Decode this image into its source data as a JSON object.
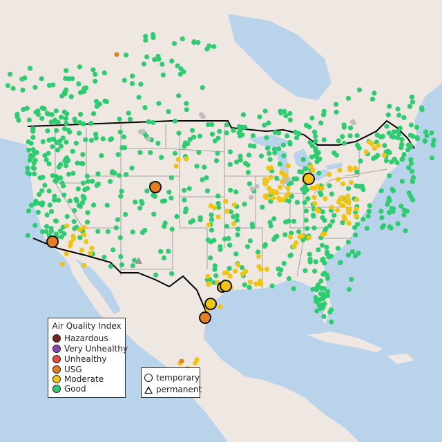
{
  "colors": {
    "water": "#b9d3ea",
    "land": "#eee7e2",
    "land_shade": "#d6cfc9",
    "state_lines": "#8f8f8f",
    "border": "#000000",
    "good": "#2ecc71",
    "moderate": "#f1c40f",
    "usg": "#e67e22",
    "unhealthy": "#e74c3c",
    "very_unhealthy": "#8e44ad",
    "hazardous": "#7b241c",
    "no_data": "#bdbdbd"
  },
  "legend": {
    "title": "Air Quality Index",
    "items": [
      {
        "label": "Hazardous",
        "color": "#7b241c"
      },
      {
        "label": "Very Unhealthy",
        "color": "#8e44ad"
      },
      {
        "label": "Unhealthy",
        "color": "#e74c3c"
      },
      {
        "label": "USG",
        "color": "#e67e22"
      },
      {
        "label": "Moderate",
        "color": "#f1c40f"
      },
      {
        "label": "Good",
        "color": "#2ecc71"
      }
    ]
  },
  "monitor_types": {
    "temporary": "temporary",
    "permanent": "permanent"
  }
}
